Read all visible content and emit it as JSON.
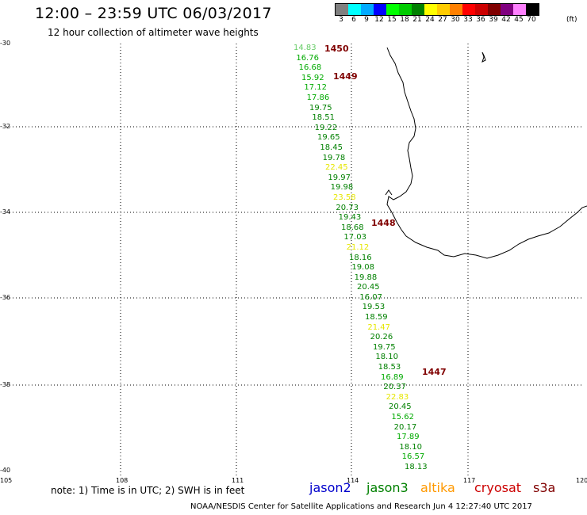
{
  "header": {
    "title": "12:00 – 23:59 UTC 06/03/2017",
    "subtitle": "12 hour collection of altimeter wave heights"
  },
  "legend": {
    "unit": "(ft)",
    "swatches": [
      {
        "color": "#808080",
        "label": "3"
      },
      {
        "color": "#00ffff",
        "label": "6"
      },
      {
        "color": "#00aaff",
        "label": "9"
      },
      {
        "color": "#0000ff",
        "label": "12"
      },
      {
        "color": "#00ff00",
        "label": "15"
      },
      {
        "color": "#00cc00",
        "label": "18"
      },
      {
        "color": "#008000",
        "label": "21"
      },
      {
        "color": "#ffff00",
        "label": "24"
      },
      {
        "color": "#ffcc00",
        "label": "27"
      },
      {
        "color": "#ff8000",
        "label": "30"
      },
      {
        "color": "#ff0000",
        "label": "33"
      },
      {
        "color": "#cc0000",
        "label": "36"
      },
      {
        "color": "#800000",
        "label": "39"
      },
      {
        "color": "#800080",
        "label": "42"
      },
      {
        "color": "#ff80ff",
        "label": "45"
      },
      {
        "color": "#000000",
        "label": "70"
      }
    ]
  },
  "axes": {
    "lat_labels": [
      "-30",
      "-32",
      "-34",
      "-36",
      "-38",
      "-40"
    ],
    "lon_labels": [
      "105",
      "108",
      "111",
      "114",
      "117",
      "120"
    ]
  },
  "track": {
    "values": [
      {
        "v": "14.83",
        "color": "#66cc66"
      },
      {
        "v": "16.76",
        "color": "#00aa00"
      },
      {
        "v": "16.68",
        "color": "#00aa00"
      },
      {
        "v": "15.92",
        "color": "#00aa00"
      },
      {
        "v": "17.12",
        "color": "#00aa00"
      },
      {
        "v": "17.86",
        "color": "#00aa00"
      },
      {
        "v": "19.75",
        "color": "#008000"
      },
      {
        "v": "18.51",
        "color": "#008000"
      },
      {
        "v": "19.22",
        "color": "#008000"
      },
      {
        "v": "19.65",
        "color": "#008000"
      },
      {
        "v": "18.45",
        "color": "#008000"
      },
      {
        "v": "19.78",
        "color": "#008000"
      },
      {
        "v": "22.45",
        "color": "#e6e600"
      },
      {
        "v": "19.97",
        "color": "#008000"
      },
      {
        "v": "19.98",
        "color": "#008000"
      },
      {
        "v": "23.58",
        "color": "#e6e600"
      },
      {
        "v": "20.73",
        "color": "#008000"
      },
      {
        "v": "19.43",
        "color": "#008000"
      },
      {
        "v": "18.68",
        "color": "#008000"
      },
      {
        "v": "17.03",
        "color": "#008000"
      },
      {
        "v": "21.12",
        "color": "#e6e600"
      },
      {
        "v": "18.16",
        "color": "#008000"
      },
      {
        "v": "19.08",
        "color": "#008000"
      },
      {
        "v": "19.88",
        "color": "#008000"
      },
      {
        "v": "20.45",
        "color": "#008000"
      },
      {
        "v": "16.07",
        "color": "#008000"
      },
      {
        "v": "19.53",
        "color": "#008000"
      },
      {
        "v": "18.59",
        "color": "#008000"
      },
      {
        "v": "21.47",
        "color": "#e6e600"
      },
      {
        "v": "20.26",
        "color": "#008000"
      },
      {
        "v": "19.75",
        "color": "#008000"
      },
      {
        "v": "18.10",
        "color": "#008000"
      },
      {
        "v": "18.53",
        "color": "#008000"
      },
      {
        "v": "16.89",
        "color": "#00aa00"
      },
      {
        "v": "20.37",
        "color": "#008000"
      },
      {
        "v": "22.83",
        "color": "#e6e600"
      },
      {
        "v": "20.45",
        "color": "#008000"
      },
      {
        "v": "15.62",
        "color": "#00aa00"
      },
      {
        "v": "20.17",
        "color": "#008000"
      },
      {
        "v": "17.89",
        "color": "#00aa00"
      },
      {
        "v": "18.10",
        "color": "#008000"
      },
      {
        "v": "16.57",
        "color": "#00aa00"
      },
      {
        "v": "18.13",
        "color": "#008000"
      }
    ],
    "passes": [
      "1450",
      "1449",
      "1448",
      "1447"
    ]
  },
  "note": "note: 1) Time is in UTC; 2) SWH is in feet",
  "satellites": [
    {
      "name": "jason2",
      "color": "#0000cc"
    },
    {
      "name": "jason3",
      "color": "#008000"
    },
    {
      "name": "altika",
      "color": "#ff9900"
    },
    {
      "name": "cryosat",
      "color": "#cc0000"
    },
    {
      "name": "s3a",
      "color": "#800000"
    }
  ],
  "footer": "NOAA/NESDIS Center for Satellite Applications and Research   Jun  4 12:27:40 UTC 2017"
}
